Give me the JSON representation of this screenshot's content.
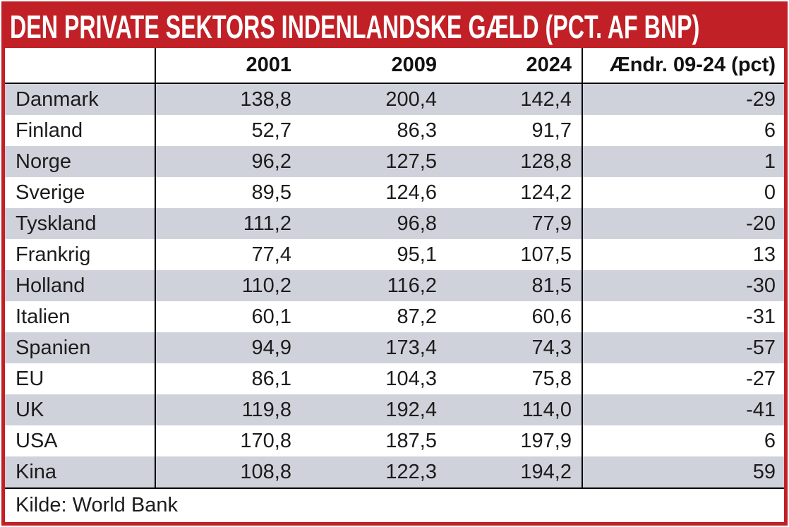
{
  "title": "DEN PRIVATE SEKTORS INDENLANDSKE GÆLD (PCT. AF BNP)",
  "source": "Kilde: World Bank",
  "colors": {
    "accent_red": "#c12026",
    "row_alt": "#d0d2db",
    "grid_line": "#000000",
    "title_text": "#ffffff"
  },
  "chart_data": {
    "type": "table",
    "title": "Den private sektors indenlandske gæld (pct. af BNP)",
    "columns": [
      "",
      "2001",
      "2009",
      "2024",
      "Ændr. 09-24 (pct)"
    ],
    "rows": [
      {
        "country": "Danmark",
        "y2001": "138,8",
        "y2009": "200,4",
        "y2024": "142,4",
        "change": "-29"
      },
      {
        "country": "Finland",
        "y2001": "52,7",
        "y2009": "86,3",
        "y2024": "91,7",
        "change": "6"
      },
      {
        "country": "Norge",
        "y2001": "96,2",
        "y2009": "127,5",
        "y2024": "128,8",
        "change": "1"
      },
      {
        "country": "Sverige",
        "y2001": "89,5",
        "y2009": "124,6",
        "y2024": "124,2",
        "change": "0"
      },
      {
        "country": "Tyskland",
        "y2001": "111,2",
        "y2009": "96,8",
        "y2024": "77,9",
        "change": "-20"
      },
      {
        "country": "Frankrig",
        "y2001": "77,4",
        "y2009": "95,1",
        "y2024": "107,5",
        "change": "13"
      },
      {
        "country": "Holland",
        "y2001": "110,2",
        "y2009": "116,2",
        "y2024": "81,5",
        "change": "-30"
      },
      {
        "country": "Italien",
        "y2001": "60,1",
        "y2009": "87,2",
        "y2024": "60,6",
        "change": "-31"
      },
      {
        "country": "Spanien",
        "y2001": "94,9",
        "y2009": "173,4",
        "y2024": "74,3",
        "change": "-57"
      },
      {
        "country": "EU",
        "y2001": "86,1",
        "y2009": "104,3",
        "y2024": "75,8",
        "change": "-27"
      },
      {
        "country": "UK",
        "y2001": "119,8",
        "y2009": "192,4",
        "y2024": "114,0",
        "change": "-41"
      },
      {
        "country": "USA",
        "y2001": "170,8",
        "y2009": "187,5",
        "y2024": "197,9",
        "change": "6"
      },
      {
        "country": "Kina",
        "y2001": "108,8",
        "y2009": "122,3",
        "y2024": "194,2",
        "change": "59"
      }
    ],
    "notes": "Zebra striping: first data row shaded, alternating; vertical rules after country column and after 2024 column"
  }
}
